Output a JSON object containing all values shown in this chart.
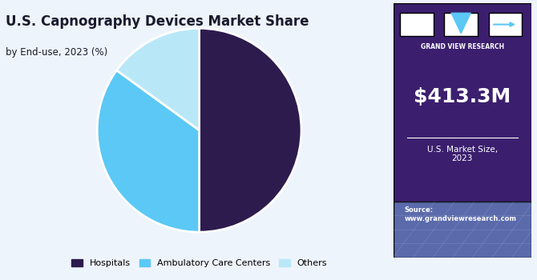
{
  "title_line1": "U.S. Capnography Devices Market Share",
  "title_line2": "by End-use, 2023 (%)",
  "segments": [
    "Hospitals",
    "Ambulatory Care Centers",
    "Others"
  ],
  "values": [
    50,
    35,
    15
  ],
  "colors": [
    "#2d1b4e",
    "#5bc8f5",
    "#b8e8f8"
  ],
  "wedge_edge_color": "white",
  "chart_bg": "#eef4fb",
  "right_panel_bg": "#3b1f6e",
  "right_panel_bottom_bg": "#5a6aab",
  "market_size": "$413.3M",
  "market_label": "U.S. Market Size,\n2023",
  "source_label": "Source:\nwww.grandviewresearch.com",
  "legend_colors": [
    "#2d1b4e",
    "#5bc8f5",
    "#b8e8f8"
  ],
  "title_color": "#1a1a2e",
  "startangle": 90,
  "logo_text": "GRAND VIEW RESEARCH"
}
